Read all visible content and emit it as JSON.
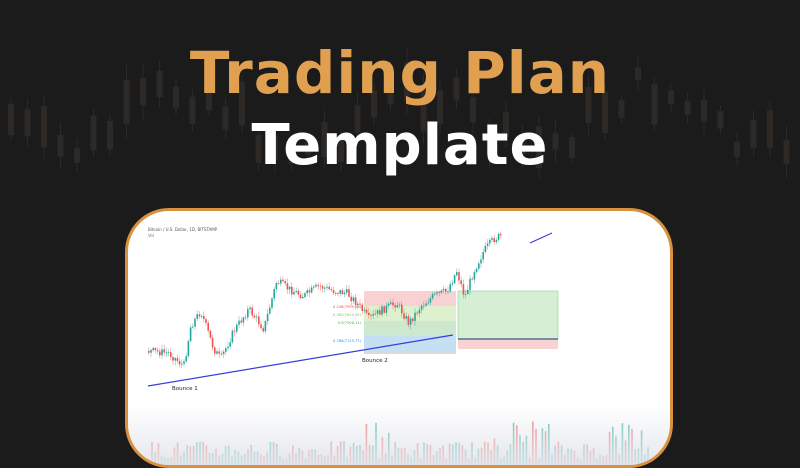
{
  "page": {
    "title_line_1": "Trading Plan",
    "title_line_2": "Template"
  },
  "colors": {
    "background": "#1b1b1b",
    "title_accent": "#e0a050",
    "title_white": "#ffffff",
    "card_border": "#d9913f",
    "bull": "#26a69a",
    "bear": "#ef5350",
    "trendline": "#3b3bd6",
    "bg_candle": "#3a3530"
  },
  "chart": {
    "header_line_1": "Bitcoin / U.S. Dollar, 1D, BITSTAMP",
    "header_line_2": "Vol",
    "fib_levels": [
      {
        "label": "0.236(7995.96)",
        "color": "#ef5350"
      },
      {
        "label": "0.382(7614.35)",
        "color": "#8bc34a"
      },
      {
        "label": "0.5(7306.11)",
        "color": "#4caf50"
      },
      {
        "label": "0.786(7125.77)",
        "color": "#2196f3"
      }
    ],
    "annotations": [
      {
        "id": "bounce-1",
        "text": "Bounce 1"
      },
      {
        "id": "bounce-2",
        "text": "Bounce 2"
      }
    ]
  }
}
